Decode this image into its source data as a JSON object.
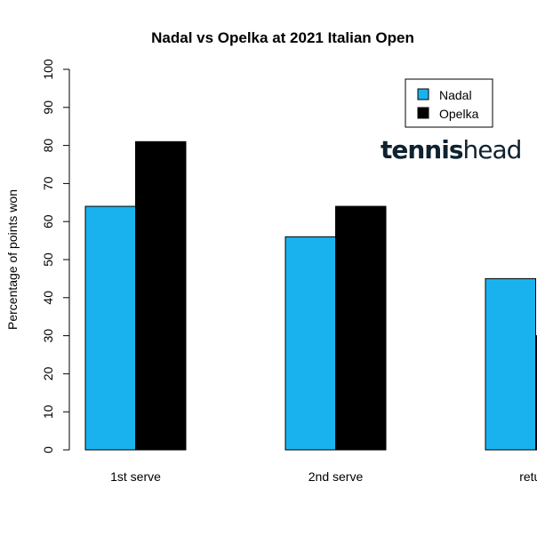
{
  "chart_data": {
    "type": "bar",
    "title": "Nadal vs Opelka at 2021 Italian Open",
    "ylabel": "Percentage of points won",
    "xlabel": "",
    "categories": [
      "1st serve",
      "2nd serve",
      "return"
    ],
    "series": [
      {
        "name": "Nadal",
        "values": [
          64,
          56,
          45
        ],
        "color": "#1ab2ee"
      },
      {
        "name": "Opelka",
        "values": [
          81,
          64,
          30
        ],
        "color": "#000000"
      }
    ],
    "ylim": [
      0,
      100
    ],
    "yticks": [
      "0",
      "10",
      "20",
      "30",
      "40",
      "50",
      "60",
      "70",
      "80",
      "90",
      "100"
    ],
    "grid": false,
    "legend_position": "top-right"
  },
  "watermark": {
    "text_bold": "tennis",
    "text_regular": "head",
    "color": "#0e2230"
  }
}
